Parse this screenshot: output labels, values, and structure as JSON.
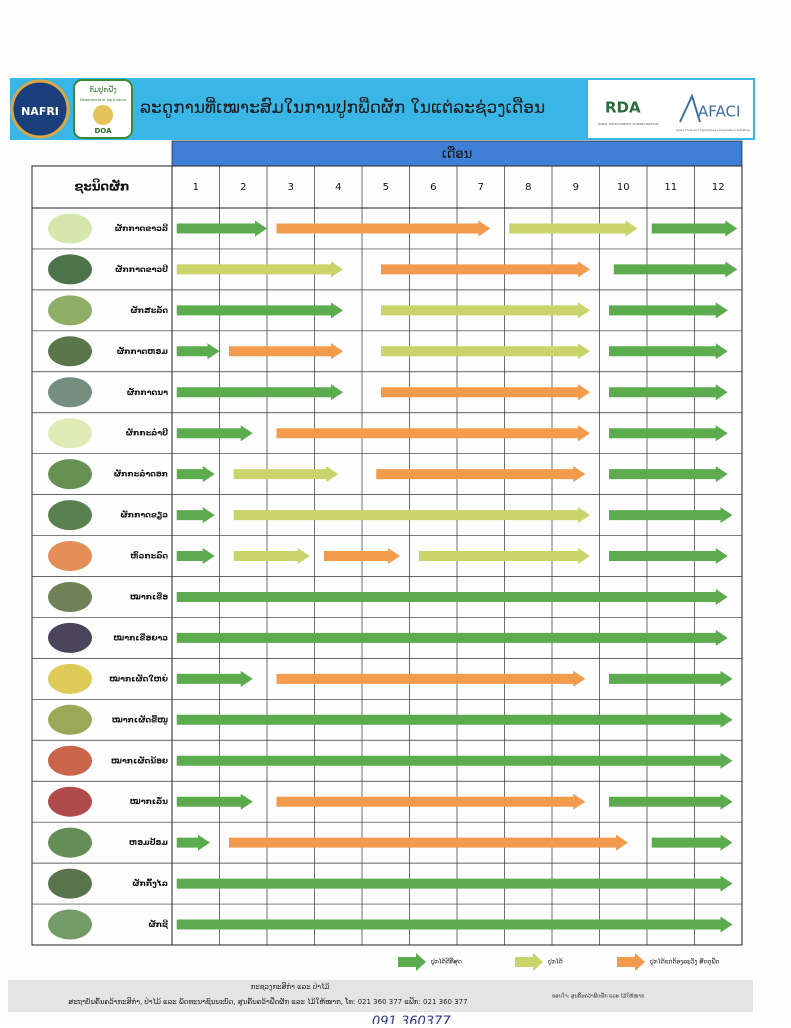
{
  "header": {
    "title": "ລະດູການທີ່ເໝາະສົມໃນການປູກພືດຜັກ ໃນແຕ່ລະຊ່ວງເດືອນ",
    "logos": {
      "nafri": "NAFRI",
      "doa_lao": "ກົມປູກຝັງ",
      "doa_en": "Department of Agriculture",
      "doa": "DOA",
      "rda": "RDA",
      "rda_sub": "RURAL DEVELOPMENT ADMINISTRATION",
      "afaci": "AFACI",
      "afaci_sub": "Asian Food and Agriculture Cooperation Initiative"
    }
  },
  "table": {
    "month_header": "ເດືອນ",
    "name_header": "ຊະນິດຜັກ",
    "months": [
      1,
      2,
      3,
      4,
      5,
      6,
      7,
      8,
      9,
      10,
      11,
      12
    ],
    "rows": [
      {
        "name": "ຜັກກາດຂາວລີ",
        "arrows": [
          {
            "start": 1.1,
            "end": 3.0,
            "color": "#5cab4f"
          },
          {
            "start": 3.2,
            "end": 7.7,
            "color": "#f39b4c"
          },
          {
            "start": 8.1,
            "end": 10.8,
            "color": "#c9d46b"
          },
          {
            "start": 11.1,
            "end": 12.9,
            "color": "#5cab4f"
          }
        ]
      },
      {
        "name": "ຜັກກາດຂາວປີ",
        "arrows": [
          {
            "start": 1.1,
            "end": 4.6,
            "color": "#c9d46b"
          },
          {
            "start": 5.4,
            "end": 9.8,
            "color": "#f39b4c"
          },
          {
            "start": 10.3,
            "end": 12.9,
            "color": "#5cab4f"
          }
        ]
      },
      {
        "name": "ຜັກສະລັດ",
        "arrows": [
          {
            "start": 1.1,
            "end": 4.6,
            "color": "#5cab4f"
          },
          {
            "start": 5.4,
            "end": 9.8,
            "color": "#c9d46b"
          },
          {
            "start": 10.2,
            "end": 12.7,
            "color": "#5cab4f"
          }
        ]
      },
      {
        "name": "ຜັກກາດຫອມ",
        "arrows": [
          {
            "start": 1.1,
            "end": 2.0,
            "color": "#5cab4f"
          },
          {
            "start": 2.2,
            "end": 4.6,
            "color": "#f39b4c"
          },
          {
            "start": 5.4,
            "end": 9.8,
            "color": "#c9d46b"
          },
          {
            "start": 10.2,
            "end": 12.7,
            "color": "#5cab4f"
          }
        ]
      },
      {
        "name": "ຜັກກາດນາ",
        "arrows": [
          {
            "start": 1.1,
            "end": 4.6,
            "color": "#5cab4f"
          },
          {
            "start": 5.4,
            "end": 9.8,
            "color": "#f39b4c"
          },
          {
            "start": 10.2,
            "end": 12.7,
            "color": "#5cab4f"
          }
        ]
      },
      {
        "name": "ຜັກກະລໍ່າປີ",
        "arrows": [
          {
            "start": 1.1,
            "end": 2.7,
            "color": "#5cab4f"
          },
          {
            "start": 3.2,
            "end": 9.8,
            "color": "#f39b4c"
          },
          {
            "start": 10.2,
            "end": 12.7,
            "color": "#5cab4f"
          }
        ]
      },
      {
        "name": "ຜັກກະລໍ່າດອກ",
        "arrows": [
          {
            "start": 1.1,
            "end": 1.9,
            "color": "#5cab4f"
          },
          {
            "start": 2.3,
            "end": 4.5,
            "color": "#c9d46b"
          },
          {
            "start": 5.3,
            "end": 9.7,
            "color": "#f39b4c"
          },
          {
            "start": 10.2,
            "end": 12.7,
            "color": "#5cab4f"
          }
        ]
      },
      {
        "name": "ຜັກກາດຂຽວ",
        "arrows": [
          {
            "start": 1.1,
            "end": 1.9,
            "color": "#5cab4f"
          },
          {
            "start": 2.3,
            "end": 9.8,
            "color": "#c9d46b"
          },
          {
            "start": 10.2,
            "end": 12.8,
            "color": "#5cab4f"
          }
        ]
      },
      {
        "name": "ຫົວກະລົດ",
        "arrows": [
          {
            "start": 1.1,
            "end": 1.9,
            "color": "#5cab4f"
          },
          {
            "start": 2.3,
            "end": 3.9,
            "color": "#c9d46b"
          },
          {
            "start": 4.2,
            "end": 5.8,
            "color": "#f39b4c"
          },
          {
            "start": 6.2,
            "end": 9.8,
            "color": "#c9d46b"
          },
          {
            "start": 10.2,
            "end": 12.7,
            "color": "#5cab4f"
          }
        ]
      },
      {
        "name": "ໝາກເຂືອ",
        "arrows": [
          {
            "start": 1.1,
            "end": 12.7,
            "color": "#5cab4f"
          }
        ]
      },
      {
        "name": "ໝາກເຂືອຍາວ",
        "arrows": [
          {
            "start": 1.1,
            "end": 12.7,
            "color": "#5cab4f"
          }
        ]
      },
      {
        "name": "ໝາກເຜັດໃຫຍ່",
        "arrows": [
          {
            "start": 1.1,
            "end": 2.7,
            "color": "#5cab4f"
          },
          {
            "start": 3.2,
            "end": 9.7,
            "color": "#f39b4c"
          },
          {
            "start": 10.2,
            "end": 12.8,
            "color": "#5cab4f"
          }
        ]
      },
      {
        "name": "ໝາກເຜັດຂີ້ໜູ",
        "arrows": [
          {
            "start": 1.1,
            "end": 12.8,
            "color": "#5cab4f"
          }
        ]
      },
      {
        "name": "ໝາກເຜັດນ້ອຍ",
        "arrows": [
          {
            "start": 1.1,
            "end": 12.8,
            "color": "#5cab4f"
          }
        ]
      },
      {
        "name": "ໝາກເລັ່ນ",
        "arrows": [
          {
            "start": 1.1,
            "end": 2.7,
            "color": "#5cab4f"
          },
          {
            "start": 3.2,
            "end": 9.7,
            "color": "#f39b4c"
          },
          {
            "start": 10.2,
            "end": 12.8,
            "color": "#5cab4f"
          }
        ]
      },
      {
        "name": "ຫອມປ້ອມ",
        "arrows": [
          {
            "start": 1.1,
            "end": 1.8,
            "color": "#5cab4f"
          },
          {
            "start": 2.2,
            "end": 10.6,
            "color": "#f39b4c"
          },
          {
            "start": 11.1,
            "end": 12.8,
            "color": "#5cab4f"
          }
        ]
      },
      {
        "name": "ຜັກກົ້ງໄລ",
        "arrows": [
          {
            "start": 1.1,
            "end": 12.8,
            "color": "#5cab4f"
          }
        ]
      },
      {
        "name": "ຜັກຊີ",
        "arrows": [
          {
            "start": 1.1,
            "end": 12.8,
            "color": "#5cab4f"
          }
        ]
      }
    ]
  },
  "legend": [
    {
      "label": "ປູກໄດ້ດີທີ່ສຸດ",
      "color": "#5cab4f"
    },
    {
      "label": "ປູກໄດ້",
      "color": "#c9d46b"
    },
    {
      "label": "ປູກໄດ້ແຕ່ຕ້ອງລະວັງ ສັດຕູພືດ",
      "color": "#f39b4c"
    }
  ],
  "footer": {
    "line1": "ກະຊວງກະສິກຳ ແລະ ປ່າໄມ້",
    "line2": "ສະຖາບັນຄົ້ນຄວ້າກະສິກຳ, ປ່າໄມ້ ແລະ ພັດທະນາຊົນນະບົດ, ສູນຄົ້ນຄວ້າພືດຜັກ ແລະ ໄມ້ໃຫ້ໝາກ, ໂທ: 021 360 377 ແຟັກ: 021 360 377",
    "note": "ຂອບໃຈ: ສູນຄົ້ນຄວ້າພືດຜັກ ແລະ ໄມ້ໃຫ້ໝາກ"
  },
  "handwritten": "091 360377"
}
